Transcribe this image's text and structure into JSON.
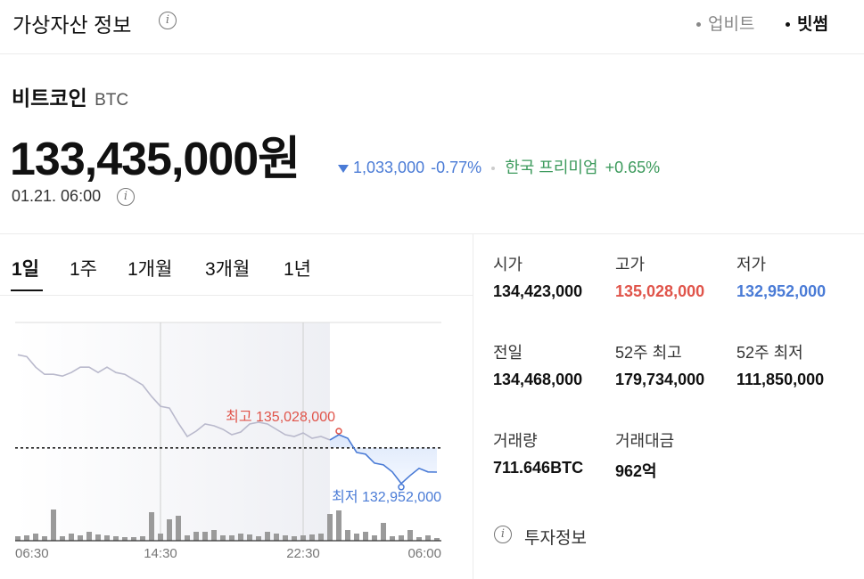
{
  "header": {
    "title": "가상자산 정보",
    "tabs": [
      "업비트",
      "빗썸"
    ]
  },
  "asset": {
    "name": "비트코인",
    "symbol": "BTC",
    "price": "133,435,000원",
    "change": "1,033,000",
    "change_rate": "-0.77%",
    "premium_label": "한국 프리미엄",
    "premium": "+0.65%",
    "time": "01.21. 06:00"
  },
  "periods": [
    "1일",
    "1주",
    "1개월",
    "3개월",
    "1년"
  ],
  "chart_data": {
    "type": "line",
    "categories": [
      null,
      null,
      "06:30",
      null,
      null,
      null,
      null,
      null,
      null,
      null,
      null,
      null,
      null,
      null,
      null,
      null,
      "14:30",
      null,
      null,
      null,
      null,
      null,
      null,
      null,
      null,
      null,
      null,
      null,
      null,
      null,
      null,
      null,
      "22:30",
      null,
      null,
      null,
      null,
      null,
      null,
      null,
      null,
      null,
      null,
      null,
      null,
      null,
      "06:00",
      null
    ],
    "series": [
      {
        "color": "#b9b9cc",
        "values": [
          138425000,
          138350000,
          137897000,
          137595000,
          137595000,
          137519000,
          137670000,
          137897000,
          137897000,
          137670000,
          137897000,
          137670000,
          137595000,
          137368000,
          137142000,
          136651000,
          136236000,
          136160000,
          135519000,
          134953000,
          135179000,
          135481000,
          135405000,
          135254000,
          135028000,
          135141000,
          135481000,
          135556000,
          135481000,
          135254000,
          135028000,
          134953000,
          135103000,
          134877000,
          134953000,
          134802000,
          null,
          null,
          null,
          null,
          null,
          null,
          null,
          null,
          null,
          null,
          null,
          null
        ]
      },
      {
        "color": "#4a7bd6",
        "values": [
          null,
          null,
          null,
          null,
          null,
          null,
          null,
          null,
          null,
          null,
          null,
          null,
          null,
          null,
          null,
          null,
          null,
          null,
          null,
          null,
          null,
          null,
          null,
          null,
          null,
          null,
          null,
          null,
          null,
          null,
          null,
          null,
          null,
          null,
          null,
          134802000,
          135028000,
          134877000,
          134273000,
          134198000,
          133820000,
          133745000,
          133443000,
          132952000,
          133292000,
          133594000,
          133443000,
          133435000
        ]
      }
    ],
    "reference": 134468000,
    "high": {
      "label": "최고 135,028,000",
      "value": 135028000,
      "color": "#e0544a"
    },
    "low": {
      "label": "최저 132,952,000",
      "value": 132952000,
      "color": "#4a7bd6"
    },
    "ylim": [
      132300000,
      139800000
    ],
    "volumes": [
      5,
      6,
      8,
      5,
      35,
      5,
      8,
      6,
      10,
      7,
      6,
      5,
      4,
      4,
      5,
      32,
      8,
      24,
      28,
      6,
      10,
      10,
      12,
      6,
      6,
      8,
      7,
      5,
      10,
      8,
      6,
      5,
      6,
      7,
      8,
      30,
      34,
      12,
      8,
      10,
      6,
      20,
      5,
      6,
      12,
      4,
      6,
      3
    ],
    "volume_color": "#9a9a9a",
    "vlim": [
      0,
      50
    ],
    "grid": true
  },
  "stats": [
    {
      "label": "시가",
      "value": "134,423,000"
    },
    {
      "label": "고가",
      "value": "135,028,000"
    },
    {
      "label": "저가",
      "value": "132,952,000"
    },
    {
      "label": "전일",
      "value": "134,468,000"
    },
    {
      "label": "52주 최고",
      "value": "179,734,000"
    },
    {
      "label": "52주 최저",
      "value": "111,850,000"
    },
    {
      "label": "거래량",
      "value": "711.646BTC"
    },
    {
      "label": "거래대금",
      "value": "962억"
    }
  ],
  "footer": {
    "link": "투자정보"
  }
}
